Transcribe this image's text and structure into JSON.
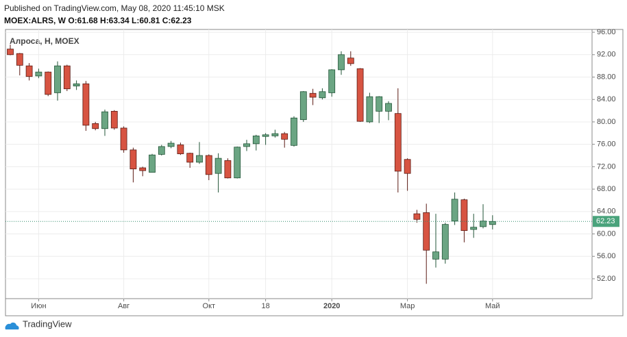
{
  "header": {
    "published": "Published on TradingView.com, May 08, 2020 11:45:10 MSK",
    "symbol_line": "MOEX:ALRS, W O:61.68 H:63.34 L:60.81 C:62.23",
    "brand": "TradingView"
  },
  "chart_data": {
    "type": "candlestick",
    "legend": "Алроса, Н, MOEX",
    "categories": [
      null,
      null,
      null,
      "Июн",
      null,
      null,
      null,
      null,
      null,
      null,
      null,
      null,
      "Авг",
      null,
      null,
      null,
      null,
      null,
      null,
      null,
      null,
      "Окт",
      null,
      null,
      null,
      null,
      null,
      "18",
      null,
      null,
      null,
      null,
      null,
      null,
      "2020",
      null,
      null,
      null,
      null,
      null,
      null,
      null,
      "Мар",
      null,
      null,
      null,
      null,
      null,
      null,
      null,
      null,
      "Май"
    ],
    "series": [
      {
        "name": "ALRS",
        "up_color": "#6ba583",
        "down_color": "#d75442",
        "up_border": "#225437",
        "down_border": "#5b1a13",
        "open": [
          93.0,
          92.2,
          90.0,
          88.2,
          88.9,
          85.2,
          90.0,
          86.4,
          86.8,
          79.7,
          78.8,
          81.9,
          78.9,
          75.0,
          71.8,
          71.0,
          74.2,
          75.6,
          75.9,
          74.4,
          72.8,
          74.0,
          70.8,
          73.1,
          70.0,
          75.6,
          76.1,
          77.4,
          77.5,
          77.9,
          75.8,
          80.4,
          85.1,
          84.3,
          85.2,
          89.3,
          91.4,
          89.5,
          80.0,
          81.9,
          81.9,
          81.5,
          73.3,
          63.6,
          63.8,
          55.5,
          55.5,
          62.3,
          66.1,
          60.8,
          61.3,
          61.68
        ],
        "high": [
          93.8,
          92.3,
          90.5,
          89.5,
          89.0,
          90.8,
          90.2,
          87.4,
          87.3,
          80.0,
          82.2,
          82.1,
          79.2,
          75.4,
          72.0,
          74.3,
          75.9,
          76.6,
          76.3,
          74.5,
          76.4,
          74.2,
          74.4,
          73.5,
          75.6,
          76.8,
          77.7,
          78.0,
          78.6,
          78.2,
          81.0,
          85.5,
          85.9,
          86.0,
          89.4,
          92.6,
          92.6,
          89.6,
          85.2,
          84.6,
          83.7,
          86.0,
          73.5,
          64.3,
          65.4,
          63.6,
          62.0,
          67.4,
          66.3,
          63.6,
          65.3,
          63.34
        ],
        "low": [
          91.9,
          88.3,
          87.4,
          87.8,
          84.6,
          83.8,
          85.5,
          85.7,
          78.4,
          78.5,
          77.5,
          78.6,
          74.5,
          69.2,
          70.3,
          71.0,
          74.0,
          75.3,
          74.1,
          71.8,
          72.5,
          69.6,
          67.4,
          69.9,
          69.9,
          74.8,
          74.9,
          75.9,
          77.2,
          75.4,
          75.6,
          80.0,
          83.0,
          84.0,
          84.5,
          88.4,
          90.0,
          80.0,
          79.8,
          79.8,
          80.3,
          67.4,
          67.7,
          62.0,
          51.1,
          54.0,
          54.7,
          61.6,
          58.5,
          59.3,
          61.0,
          60.81
        ],
        "close": [
          92.0,
          90.1,
          88.1,
          88.9,
          84.9,
          90.0,
          85.9,
          86.8,
          79.4,
          78.8,
          81.8,
          78.9,
          75.0,
          71.6,
          71.3,
          74.1,
          75.6,
          76.2,
          74.3,
          72.8,
          74.0,
          70.6,
          73.5,
          70.0,
          75.5,
          76.1,
          77.5,
          77.7,
          77.9,
          76.9,
          80.7,
          85.4,
          84.4,
          85.4,
          89.3,
          92.0,
          90.4,
          80.1,
          84.5,
          84.5,
          83.3,
          71.2,
          70.8,
          62.6,
          57.1,
          56.8,
          61.7,
          66.2,
          60.6,
          61.2,
          62.3,
          62.23
        ]
      }
    ],
    "ylim": [
      48.45,
      96.5
    ],
    "yticks": [
      {
        "value": 52,
        "label": "52.00"
      },
      {
        "value": 56,
        "label": "56.00"
      },
      {
        "value": 60,
        "label": "60.00"
      },
      {
        "value": 64,
        "label": "64.00"
      },
      {
        "value": 68,
        "label": "68.00"
      },
      {
        "value": 72,
        "label": "72.00"
      },
      {
        "value": 76,
        "label": "76.00"
      },
      {
        "value": 80,
        "label": "80.00"
      },
      {
        "value": 84,
        "label": "84.00"
      },
      {
        "value": 88,
        "label": "88.00"
      },
      {
        "value": 92,
        "label": "92.00"
      },
      {
        "value": 96,
        "label": "96.00"
      }
    ],
    "grid": true
  }
}
